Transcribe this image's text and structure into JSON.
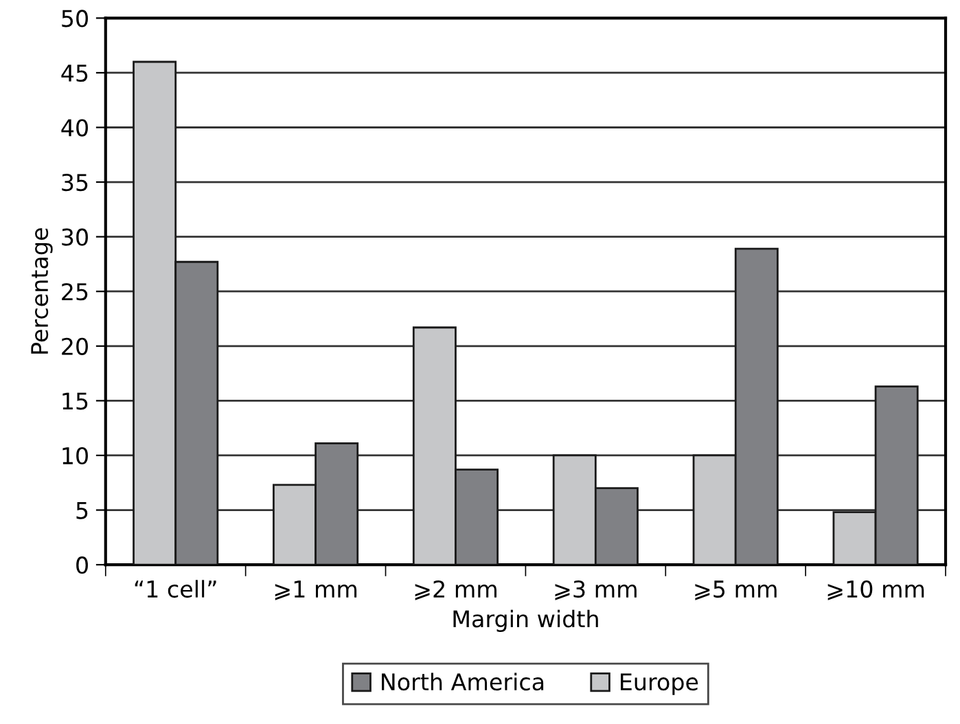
{
  "chart_data": {
    "type": "bar",
    "xlabel": "Margin width",
    "ylabel": "Percentage",
    "categories": [
      "“1 cell”",
      "⩾1 mm",
      "⩾2 mm",
      "⩾3 mm",
      "⩾5 mm",
      "⩾10 mm"
    ],
    "series": [
      {
        "name": "Europe",
        "color": "#c6c7c9",
        "values": [
          46,
          7.3,
          21.7,
          10,
          10,
          4.8
        ]
      },
      {
        "name": "North America",
        "color": "#808185",
        "values": [
          27.7,
          11.1,
          8.7,
          7.0,
          28.9,
          16.3
        ]
      }
    ],
    "ylim": [
      0,
      50
    ],
    "yticks": [
      0,
      5,
      10,
      15,
      20,
      25,
      30,
      35,
      40,
      45,
      50
    ],
    "grid": "y",
    "legend": "bottom"
  }
}
